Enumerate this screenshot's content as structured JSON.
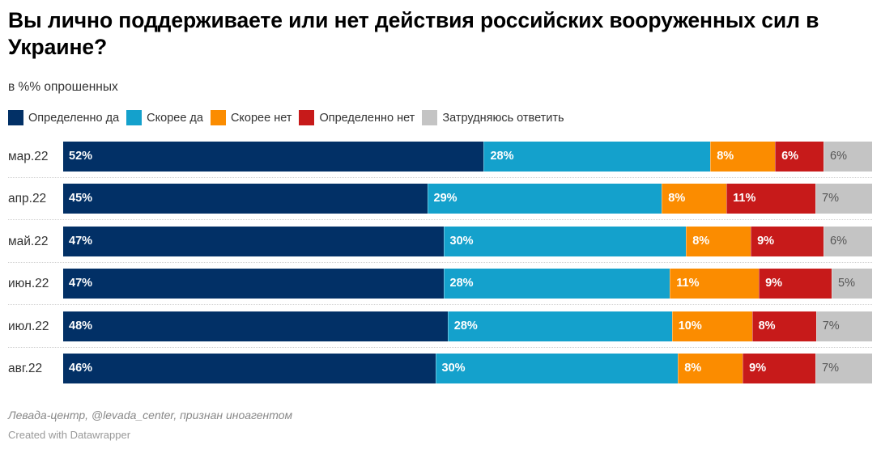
{
  "title": "Вы лично поддерживаете или нет действия российских вооруженных сил в Украине?",
  "subtitle": "в %% опрошенных",
  "source": "Левада-центр, @levada_center, признан иноагентом",
  "credit": "Created with Datawrapper",
  "chart_data": {
    "type": "bar",
    "orientation": "horizontal-stacked-100",
    "title": "Вы лично поддерживаете или нет действия российских вооруженных сил в Украине?",
    "subtitle": "в %% опрошенных",
    "xlabel": "",
    "ylabel": "",
    "xlim": [
      0,
      100
    ],
    "legend_position": "top-left",
    "categories": [
      "мар.22",
      "апр.22",
      "май.22",
      "июн.22",
      "июл.22",
      "авг.22"
    ],
    "series": [
      {
        "name": "Определенно да",
        "color": "#023066",
        "label_color": "#ffffff",
        "values": [
          52,
          45,
          47,
          47,
          48,
          46
        ]
      },
      {
        "name": "Скорее да",
        "color": "#14a1cc",
        "label_color": "#ffffff",
        "values": [
          28,
          29,
          30,
          28,
          28,
          30
        ]
      },
      {
        "name": "Скорее нет",
        "color": "#fb8c00",
        "label_color": "#ffffff",
        "values": [
          8,
          8,
          8,
          11,
          10,
          8
        ]
      },
      {
        "name": "Определенно нет",
        "color": "#c71a1a",
        "label_color": "#ffffff",
        "values": [
          6,
          11,
          9,
          9,
          8,
          9
        ]
      },
      {
        "name": "Затрудняюсь ответить",
        "color": "#c4c4c4",
        "label_color": "#555555",
        "values": [
          6,
          7,
          6,
          5,
          7,
          7
        ]
      }
    ],
    "value_suffix": "%"
  }
}
